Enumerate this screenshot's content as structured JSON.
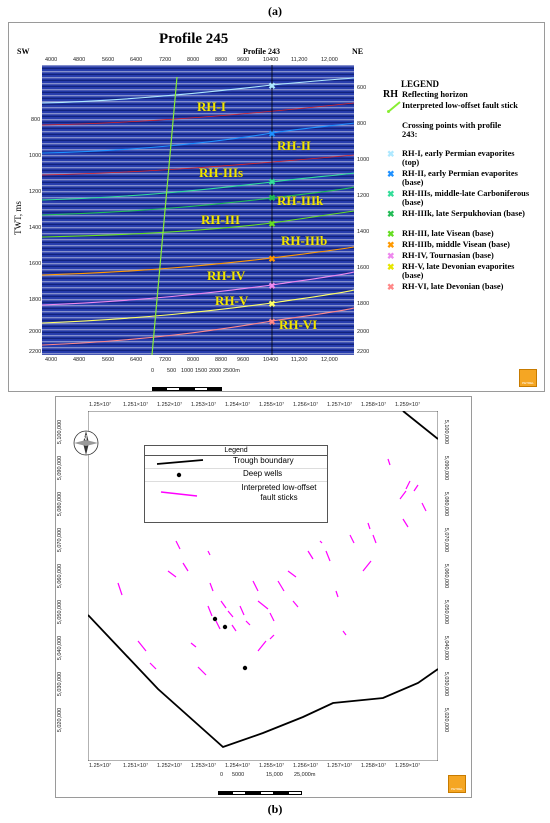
{
  "captions": {
    "a": "(a)",
    "b": "(b)"
  },
  "profile": {
    "title": "Profile 245",
    "sw": "SW",
    "ne": "NE",
    "crossing_label": "Profile 243",
    "ylabel": "TWT, ms",
    "x_ticks": [
      "4000",
      "4800",
      "5600",
      "6400",
      "7200",
      "8000",
      "8800",
      "9600",
      "10400",
      "11,200",
      "12,000"
    ],
    "y_ticks": [
      "800",
      "1000",
      "1200",
      "1400",
      "1600",
      "1800",
      "2000",
      "2200"
    ],
    "y_ticks_right": [
      "600",
      "800",
      "1000",
      "1200",
      "1400",
      "1600",
      "1800",
      "2000",
      "2200"
    ],
    "scale_labels": [
      "0",
      "500",
      "1000",
      "1500",
      "2000",
      "2500m"
    ],
    "horizon_labels": [
      "RH-I",
      "RH-II",
      "RH-IIIs",
      "RH-IIIk",
      "RH-III",
      "RH-IIIb",
      "RH-IV",
      "RH-V",
      "RH-VI"
    ],
    "logo_text": "PETREL"
  },
  "profile_legend": {
    "title": "LEGEND",
    "rh_abbr": "RH",
    "rh_desc": "Reflecting horizon",
    "fault_desc": "Interpreted low-offset fault stick",
    "crossing_title": "Crossing points with profile 243:",
    "items": [
      {
        "label": "RH-I, early Permian evaporites (top)",
        "color": "#aee8ff"
      },
      {
        "label": "RH-II, early Permian evaporites (base)",
        "color": "#1e90ff"
      },
      {
        "label": "RH-IIIs, middle-late Carboniferous (base)",
        "color": "#33dd99"
      },
      {
        "label": "RH-IIIk, late Serpukhovian (base)",
        "color": "#22bb55"
      },
      {
        "label": "RH-III, late Visean (base)",
        "color": "#66dd22"
      },
      {
        "label": "RH-IIIb, middle Visean (base)",
        "color": "#ff9900"
      },
      {
        "label": "RH-IV, Tournasian (base)",
        "color": "#ee88ee"
      },
      {
        "label": "RH-V, late Devonian evaporites (base)",
        "color": "#ffff66"
      },
      {
        "label": "RH-VI, late Devonian (base)",
        "color": "#ff8888"
      }
    ]
  },
  "map": {
    "x_ticks": [
      "1.25×10⁷",
      "1.251×10⁷",
      "1.252×10⁷",
      "1.253×10⁷",
      "1.254×10⁷",
      "1.255×10⁷",
      "1.256×10⁷",
      "1.257×10⁷",
      "1.258×10⁷",
      "1.259×10⁷"
    ],
    "y_ticks": [
      "5,100,000",
      "5,090,000",
      "5,080,000",
      "5,070,000",
      "5,060,000",
      "5,050,000",
      "5,040,000",
      "5,030,000",
      "5,020,000"
    ],
    "north": "N",
    "scale_labels": [
      "0",
      "5000",
      "15,000",
      "25,000m"
    ],
    "logo_text": "PETREL",
    "legend": {
      "title": "Legend",
      "items": [
        "Trough boundary",
        "Deep wells",
        "Interpreted low-offset fault sticks"
      ]
    },
    "colors": {
      "fault": "#ff00ff",
      "boundary": "#000000"
    }
  }
}
